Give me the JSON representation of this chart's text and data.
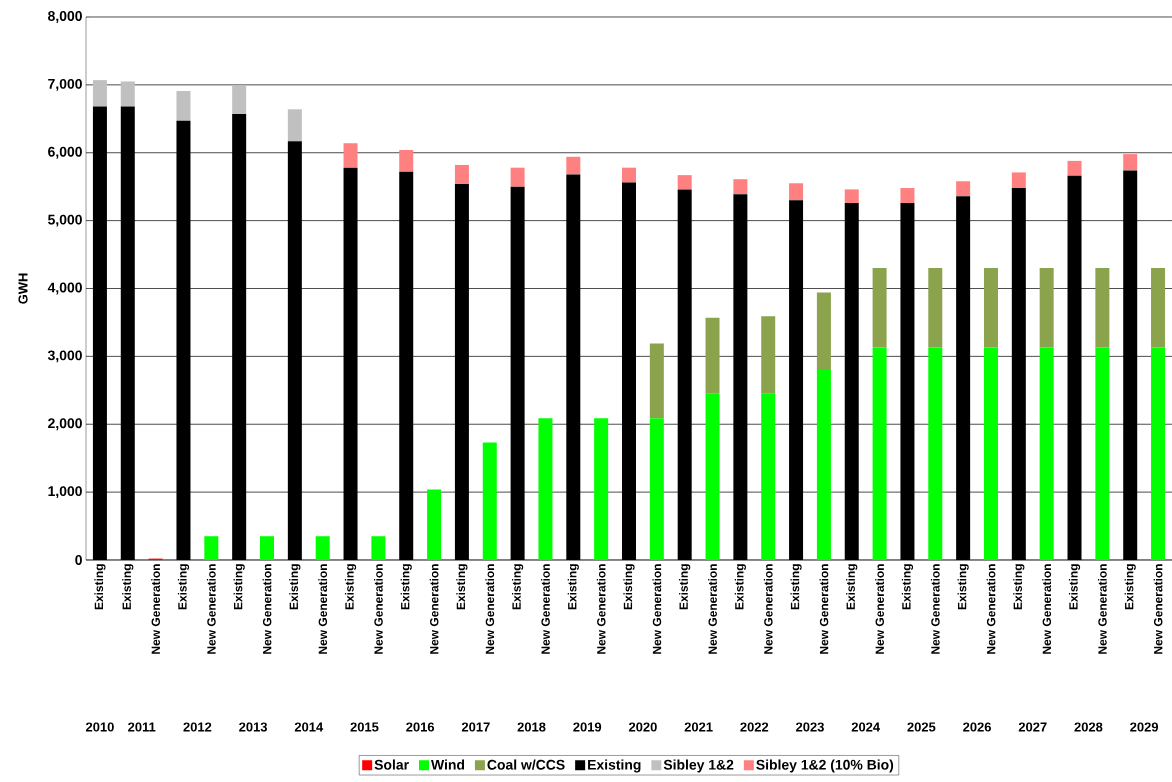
{
  "chart_data": {
    "type": "bar",
    "stacked": true,
    "ylabel": "GWH",
    "categories": [
      "Existing",
      "Existing",
      "New Generation",
      "Existing",
      "New Generation",
      "Existing",
      "New Generation",
      "Existing",
      "New Generation",
      "Existing",
      "New Generation",
      "Existing",
      "New Generation",
      "Existing",
      "New Generation",
      "Existing",
      "New Generation",
      "Existing",
      "New Generation",
      "Existing",
      "New Generation",
      "Existing",
      "New Generation",
      "Existing",
      "New Generation",
      "Existing",
      "New Generation",
      "Existing",
      "New Generation",
      "Existing",
      "New Generation",
      "Existing",
      "New Generation",
      "Existing",
      "New Generation",
      "Existing",
      "New Generation",
      "Existing",
      "New Generation"
    ],
    "series": [
      {
        "name": "Solar",
        "color": "#ff0000",
        "values": [
          null,
          null,
          20,
          null,
          null,
          null,
          null,
          null,
          null,
          null,
          null,
          null,
          null,
          null,
          null,
          null,
          null,
          null,
          null,
          null,
          null,
          null,
          null,
          null,
          null,
          null,
          null,
          null,
          null,
          null,
          null,
          null,
          null,
          null,
          null,
          null,
          null,
          null,
          null
        ]
      },
      {
        "name": "Wind",
        "color": "#00ff00",
        "values": [
          null,
          null,
          null,
          null,
          350,
          null,
          350,
          null,
          350,
          null,
          350,
          null,
          1040,
          null,
          1730,
          null,
          2090,
          null,
          2090,
          null,
          2090,
          null,
          2450,
          null,
          2450,
          null,
          2800,
          null,
          3130,
          null,
          3130,
          null,
          3130,
          null,
          3130,
          null,
          3130,
          null,
          3130
        ]
      },
      {
        "name": "Coal w/CCS",
        "color": "#8aa34c",
        "values": [
          null,
          null,
          null,
          null,
          null,
          null,
          null,
          null,
          null,
          null,
          null,
          null,
          null,
          null,
          null,
          null,
          null,
          null,
          null,
          null,
          1100,
          null,
          1120,
          null,
          1140,
          null,
          1140,
          null,
          1170,
          null,
          1170,
          null,
          1170,
          null,
          1170,
          null,
          1170,
          null,
          1170
        ]
      },
      {
        "name": "Existing",
        "color": "#000000",
        "values": [
          6680,
          6680,
          null,
          6470,
          null,
          6570,
          null,
          6170,
          null,
          5780,
          null,
          5720,
          null,
          5540,
          null,
          5500,
          null,
          5680,
          null,
          5560,
          null,
          5460,
          null,
          5390,
          null,
          5300,
          null,
          5260,
          null,
          5260,
          null,
          5360,
          null,
          5480,
          null,
          5660,
          null,
          5740,
          null
        ]
      },
      {
        "name": "Sibley 1&2",
        "color": "#c0c0c0",
        "values": [
          390,
          370,
          null,
          440,
          null,
          420,
          null,
          470,
          null,
          null,
          null,
          null,
          null,
          null,
          null,
          null,
          null,
          null,
          null,
          null,
          null,
          null,
          null,
          null,
          null,
          null,
          null,
          null,
          null,
          null,
          null,
          null,
          null,
          null,
          null,
          null,
          null,
          null,
          null
        ]
      },
      {
        "name": "Sibley 1&2 (10% Bio)",
        "color": "#ff8080",
        "values": [
          null,
          null,
          null,
          null,
          null,
          null,
          null,
          null,
          null,
          360,
          null,
          320,
          null,
          280,
          null,
          280,
          null,
          260,
          null,
          220,
          null,
          210,
          null,
          220,
          null,
          250,
          null,
          200,
          null,
          220,
          null,
          220,
          null,
          230,
          null,
          220,
          null,
          240,
          null
        ]
      }
    ],
    "ylim": [
      0,
      8000
    ],
    "yticks": [
      0,
      {
        "value": 1000,
        "label": "1,000"
      },
      {
        "value": 2000,
        "label": "2,000"
      },
      {
        "value": 3000,
        "label": "3,000"
      },
      {
        "value": 4000,
        "label": "4,000"
      },
      {
        "value": 5000,
        "label": "5,000"
      },
      {
        "value": 6000,
        "label": "6,000"
      },
      {
        "value": 7000,
        "label": "7,000"
      },
      {
        "value": 8000,
        "label": "8,000"
      }
    ],
    "grid": "y",
    "legend": "bottom",
    "marker": "none",
    "annotations": [
      "2010",
      "2011",
      "2012",
      "2013",
      "2014",
      "2015",
      "2016",
      "2017",
      "2018",
      "2019",
      "2020",
      "2021",
      "2022",
      "2023",
      "2024",
      "2025",
      "2026",
      "2027",
      "2028",
      "2029"
    ]
  }
}
